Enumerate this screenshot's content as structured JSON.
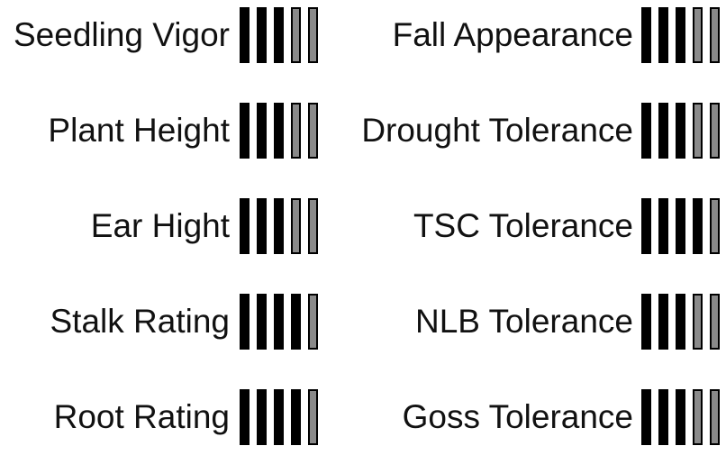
{
  "rating_scale_max": 5,
  "colors": {
    "filled": "#000000",
    "unfilled": "#8a8a8a",
    "outline": "#000000"
  },
  "left_column": [
    {
      "label": "Seedling Vigor",
      "rating": 3
    },
    {
      "label": "Plant Height",
      "rating": 3
    },
    {
      "label": "Ear Hight",
      "rating": 3
    },
    {
      "label": "Stalk Rating",
      "rating": 4
    },
    {
      "label": "Root Rating",
      "rating": 4
    }
  ],
  "right_column": [
    {
      "label": "Fall Appearance",
      "rating": 3
    },
    {
      "label": "Drought Tolerance",
      "rating": 3
    },
    {
      "label": "TSC Tolerance",
      "rating": 4
    },
    {
      "label": "NLB Tolerance",
      "rating": 3
    },
    {
      "label": "Goss Tolerance",
      "rating": 3
    }
  ]
}
